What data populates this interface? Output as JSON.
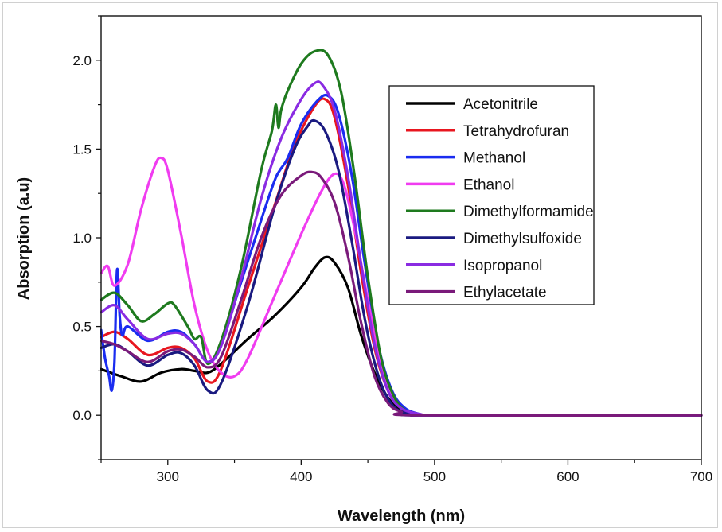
{
  "chart_data": {
    "type": "line",
    "xlabel": "Wavelength (nm)",
    "ylabel": "Absorption (a.u)",
    "xlim": [
      250,
      700
    ],
    "ylim": [
      -0.25,
      2.25
    ],
    "x_ticks": [
      300,
      400,
      500,
      600,
      700
    ],
    "x_tick_labels": [
      "300",
      "400",
      "500",
      "600",
      "700"
    ],
    "y_ticks": [
      0.0,
      0.5,
      1.0,
      1.5,
      2.0
    ],
    "y_tick_labels": [
      "0.0",
      "0.5",
      "1.0",
      "1.5",
      "2.0"
    ],
    "legend_position": "top-right",
    "grid": false,
    "series": [
      {
        "name": "Acetonitrile",
        "color": "#000000",
        "points": [
          [
            250,
            0.26
          ],
          [
            265,
            0.22
          ],
          [
            280,
            0.19
          ],
          [
            295,
            0.24
          ],
          [
            310,
            0.26
          ],
          [
            320,
            0.25
          ],
          [
            330,
            0.24
          ],
          [
            340,
            0.29
          ],
          [
            360,
            0.43
          ],
          [
            380,
            0.56
          ],
          [
            400,
            0.72
          ],
          [
            410,
            0.83
          ],
          [
            418,
            0.89
          ],
          [
            425,
            0.86
          ],
          [
            435,
            0.72
          ],
          [
            445,
            0.45
          ],
          [
            455,
            0.24
          ],
          [
            465,
            0.1
          ],
          [
            475,
            0.03
          ],
          [
            490,
            0.0
          ],
          [
            500,
            0.0
          ],
          [
            700,
            0.0
          ]
        ]
      },
      {
        "name": "Tetrahydrofuran",
        "color": "#e8161f",
        "points": [
          [
            250,
            0.44
          ],
          [
            260,
            0.47
          ],
          [
            270,
            0.43
          ],
          [
            285,
            0.34
          ],
          [
            300,
            0.38
          ],
          [
            310,
            0.38
          ],
          [
            320,
            0.32
          ],
          [
            330,
            0.19
          ],
          [
            340,
            0.26
          ],
          [
            360,
            0.72
          ],
          [
            380,
            1.18
          ],
          [
            395,
            1.52
          ],
          [
            410,
            1.74
          ],
          [
            418,
            1.78
          ],
          [
            425,
            1.68
          ],
          [
            435,
            1.3
          ],
          [
            445,
            0.8
          ],
          [
            455,
            0.38
          ],
          [
            465,
            0.14
          ],
          [
            475,
            0.04
          ],
          [
            490,
            0.005
          ],
          [
            500,
            0.0
          ],
          [
            700,
            0.0
          ]
        ]
      },
      {
        "name": "Methanol",
        "color": "#1a2cf0",
        "points": [
          [
            250,
            0.48
          ],
          [
            253,
            0.32
          ],
          [
            256,
            0.22
          ],
          [
            258,
            0.14
          ],
          [
            260,
            0.3
          ],
          [
            262,
            0.82
          ],
          [
            264,
            0.55
          ],
          [
            266,
            0.45
          ],
          [
            270,
            0.5
          ],
          [
            285,
            0.42
          ],
          [
            300,
            0.47
          ],
          [
            310,
            0.47
          ],
          [
            320,
            0.4
          ],
          [
            330,
            0.3
          ],
          [
            340,
            0.4
          ],
          [
            355,
            0.75
          ],
          [
            370,
            1.1
          ],
          [
            380,
            1.32
          ],
          [
            384,
            1.38
          ],
          [
            390,
            1.45
          ],
          [
            400,
            1.64
          ],
          [
            412,
            1.77
          ],
          [
            420,
            1.8
          ],
          [
            428,
            1.7
          ],
          [
            438,
            1.35
          ],
          [
            448,
            0.84
          ],
          [
            458,
            0.39
          ],
          [
            468,
            0.14
          ],
          [
            478,
            0.04
          ],
          [
            490,
            0.005
          ],
          [
            500,
            0.0
          ],
          [
            700,
            0.0
          ]
        ]
      },
      {
        "name": "Ethanol",
        "color": "#f03cf0",
        "points": [
          [
            250,
            0.8
          ],
          [
            255,
            0.84
          ],
          [
            260,
            0.73
          ],
          [
            270,
            0.85
          ],
          [
            280,
            1.16
          ],
          [
            290,
            1.4
          ],
          [
            295,
            1.45
          ],
          [
            300,
            1.38
          ],
          [
            310,
            1.02
          ],
          [
            320,
            0.62
          ],
          [
            330,
            0.36
          ],
          [
            340,
            0.24
          ],
          [
            350,
            0.22
          ],
          [
            360,
            0.32
          ],
          [
            380,
            0.67
          ],
          [
            400,
            1.02
          ],
          [
            415,
            1.26
          ],
          [
            425,
            1.36
          ],
          [
            432,
            1.3
          ],
          [
            440,
            1.05
          ],
          [
            450,
            0.65
          ],
          [
            460,
            0.28
          ],
          [
            470,
            0.09
          ],
          [
            480,
            0.02
          ],
          [
            495,
            0.0
          ],
          [
            700,
            0.0
          ]
        ]
      },
      {
        "name": "Dimethylformamide",
        "color": "#1e7a1e",
        "points": [
          [
            250,
            0.65
          ],
          [
            260,
            0.69
          ],
          [
            270,
            0.62
          ],
          [
            280,
            0.53
          ],
          [
            290,
            0.57
          ],
          [
            300,
            0.63
          ],
          [
            305,
            0.62
          ],
          [
            315,
            0.5
          ],
          [
            320,
            0.43
          ],
          [
            325,
            0.44
          ],
          [
            330,
            0.29
          ],
          [
            340,
            0.42
          ],
          [
            355,
            0.83
          ],
          [
            370,
            1.38
          ],
          [
            378,
            1.6
          ],
          [
            381,
            1.75
          ],
          [
            383,
            1.62
          ],
          [
            385,
            1.72
          ],
          [
            390,
            1.83
          ],
          [
            400,
            1.98
          ],
          [
            410,
            2.05
          ],
          [
            420,
            2.03
          ],
          [
            430,
            1.82
          ],
          [
            440,
            1.35
          ],
          [
            450,
            0.78
          ],
          [
            460,
            0.32
          ],
          [
            470,
            0.1
          ],
          [
            480,
            0.02
          ],
          [
            495,
            0.0
          ],
          [
            700,
            0.0
          ]
        ]
      },
      {
        "name": "Dimethylsulfoxide",
        "color": "#1a1a80",
        "points": [
          [
            250,
            0.38
          ],
          [
            260,
            0.4
          ],
          [
            270,
            0.36
          ],
          [
            285,
            0.28
          ],
          [
            300,
            0.34
          ],
          [
            310,
            0.35
          ],
          [
            320,
            0.28
          ],
          [
            330,
            0.14
          ],
          [
            340,
            0.18
          ],
          [
            360,
            0.62
          ],
          [
            380,
            1.17
          ],
          [
            395,
            1.5
          ],
          [
            405,
            1.63
          ],
          [
            410,
            1.66
          ],
          [
            418,
            1.6
          ],
          [
            428,
            1.38
          ],
          [
            438,
            0.98
          ],
          [
            448,
            0.53
          ],
          [
            458,
            0.22
          ],
          [
            468,
            0.06
          ],
          [
            480,
            0.01
          ],
          [
            495,
            0.0
          ],
          [
            700,
            0.0
          ]
        ]
      },
      {
        "name": "Isopropanol",
        "color": "#8a2be2",
        "points": [
          [
            250,
            0.58
          ],
          [
            260,
            0.62
          ],
          [
            270,
            0.54
          ],
          [
            285,
            0.43
          ],
          [
            300,
            0.46
          ],
          [
            310,
            0.46
          ],
          [
            320,
            0.4
          ],
          [
            330,
            0.3
          ],
          [
            340,
            0.39
          ],
          [
            355,
            0.77
          ],
          [
            370,
            1.22
          ],
          [
            385,
            1.56
          ],
          [
            400,
            1.78
          ],
          [
            410,
            1.87
          ],
          [
            416,
            1.86
          ],
          [
            425,
            1.72
          ],
          [
            435,
            1.35
          ],
          [
            445,
            0.85
          ],
          [
            455,
            0.4
          ],
          [
            465,
            0.14
          ],
          [
            475,
            0.04
          ],
          [
            490,
            0.005
          ],
          [
            500,
            0.0
          ],
          [
            700,
            0.0
          ]
        ]
      },
      {
        "name": "Ethylacetate",
        "color": "#7a1a7a",
        "points": [
          [
            250,
            0.42
          ],
          [
            260,
            0.4
          ],
          [
            270,
            0.36
          ],
          [
            285,
            0.3
          ],
          [
            300,
            0.36
          ],
          [
            310,
            0.37
          ],
          [
            320,
            0.33
          ],
          [
            330,
            0.27
          ],
          [
            340,
            0.33
          ],
          [
            355,
            0.65
          ],
          [
            370,
            1.0
          ],
          [
            385,
            1.24
          ],
          [
            400,
            1.35
          ],
          [
            408,
            1.37
          ],
          [
            415,
            1.34
          ],
          [
            425,
            1.2
          ],
          [
            435,
            0.9
          ],
          [
            445,
            0.52
          ],
          [
            455,
            0.22
          ],
          [
            465,
            0.07
          ],
          [
            475,
            0.02
          ],
          [
            490,
            0.0
          ],
          [
            700,
            0.0
          ]
        ]
      }
    ]
  }
}
